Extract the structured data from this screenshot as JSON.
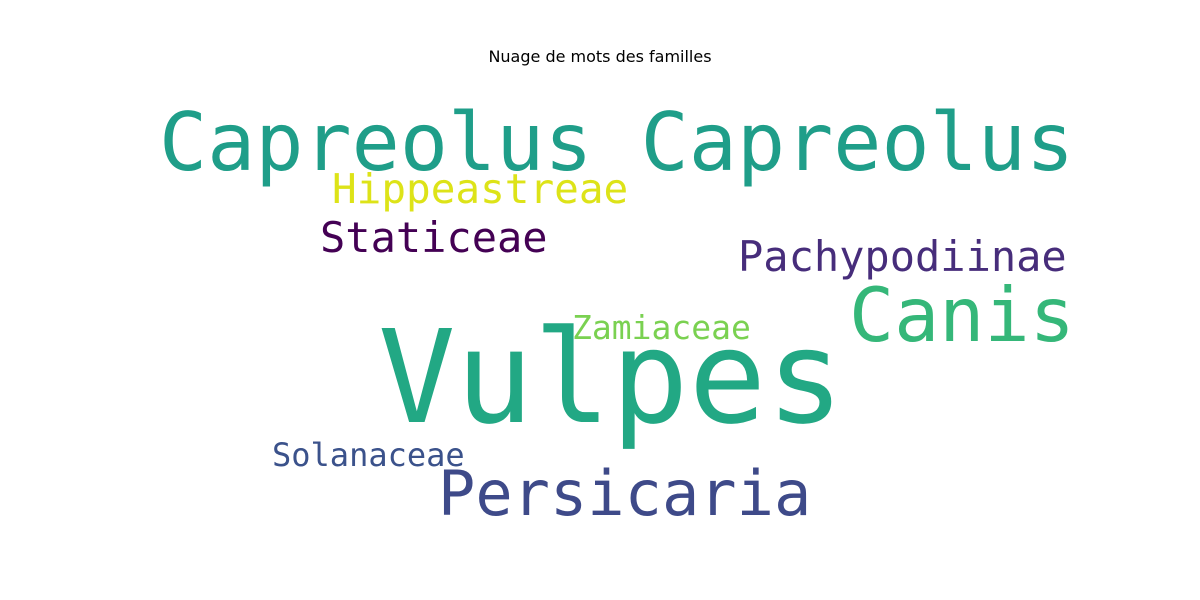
{
  "chart_data": {
    "type": "wordcloud",
    "title": "Nuage de mots des familles",
    "words": [
      {
        "text": "Vulpes",
        "weight": 1.0,
        "color": "#22a884"
      },
      {
        "text": "Capreolus Capreolus",
        "weight": 0.62,
        "color": "#1f9e89"
      },
      {
        "text": "Canis",
        "weight": 0.6,
        "color": "#35b779"
      },
      {
        "text": "Persicaria",
        "weight": 0.5,
        "color": "#3e4a89"
      },
      {
        "text": "Pachypodiinae",
        "weight": 0.35,
        "color": "#472d7b"
      },
      {
        "text": "Staticeae",
        "weight": 0.35,
        "color": "#440154"
      },
      {
        "text": "Hippeastreae",
        "weight": 0.34,
        "color": "#dde318"
      },
      {
        "text": "Zamiaceae",
        "weight": 0.28,
        "color": "#7ad151"
      },
      {
        "text": "Solanaceae",
        "weight": 0.27,
        "color": "#3b528b"
      }
    ]
  }
}
